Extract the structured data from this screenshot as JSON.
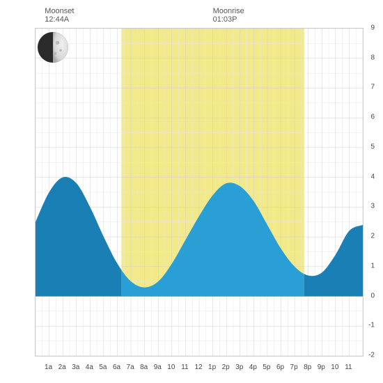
{
  "header": {
    "moonset": {
      "label": "Moonset",
      "time": "12:44A",
      "x_hour": 0.73
    },
    "moonrise": {
      "label": "Moonrise",
      "time": "01:03P",
      "x_hour": 13.05
    }
  },
  "moon": {
    "phase_illumination": 0.5,
    "dark_color": "#2a2a2a",
    "light_color": "#d8d8d8",
    "radius": 22
  },
  "chart": {
    "type": "area",
    "x_hours": [
      0,
      1,
      2,
      3,
      4,
      5,
      6,
      7,
      8,
      9,
      10,
      11,
      12,
      13,
      14,
      15,
      16,
      17,
      18,
      19,
      20,
      21,
      22,
      23
    ],
    "x_labels": [
      "1a",
      "2a",
      "3a",
      "4a",
      "5a",
      "6a",
      "7a",
      "8a",
      "9a",
      "10",
      "11",
      "12",
      "1p",
      "2p",
      "3p",
      "4p",
      "5p",
      "6p",
      "7p",
      "8p",
      "9p",
      "10",
      "11"
    ],
    "y_min": -2,
    "y_max": 9,
    "y_tick_step": 1,
    "daylight_band": {
      "start_hour": 6.3,
      "end_hour": 19.7,
      "color": "#f2e98a"
    },
    "night_shade_color": "#1a7fb4",
    "day_shade_color": "#2a9fd6",
    "grid_color": "#d0d0d0",
    "grid_minor_color": "#e6e6e6",
    "background_color": "#ffffff",
    "zero_line_color": "#999999",
    "tide_values": [
      2.5,
      3.5,
      4.0,
      3.8,
      3.0,
      2.0,
      1.1,
      0.5,
      0.3,
      0.5,
      1.1,
      1.9,
      2.7,
      3.4,
      3.8,
      3.7,
      3.2,
      2.4,
      1.6,
      1.0,
      0.7,
      0.8,
      1.4,
      2.2,
      2.4
    ],
    "font_size_axis": 10,
    "font_size_header": 11,
    "text_color": "#555555"
  }
}
